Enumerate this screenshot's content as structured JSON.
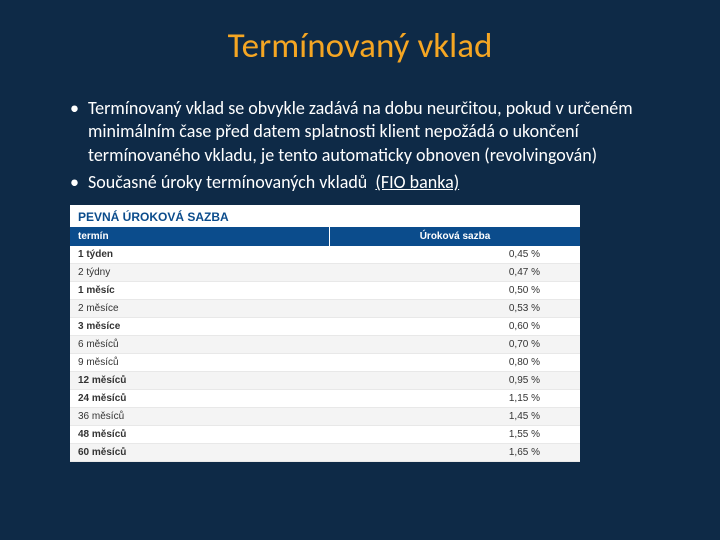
{
  "title": "Termínovaný vklad",
  "bullets": [
    "Termínovaný vklad se obvykle zadává na dobu neurčitou, pokud v určeném minimálním čase před datem splatnosti klient nepožádá o ukončení termínovaného vkladu, je tento automaticky obnoven (revolvingován)",
    "Současné úroky termínovaných vkladů"
  ],
  "link_text": "(FIO banka)",
  "table": {
    "title": "PEVNÁ ÚROKOVÁ SAZBA",
    "header_col1": "termín",
    "header_col2": "Úroková sazba",
    "rows": [
      {
        "term": "1 týden",
        "rate": "0,45 %",
        "zebra": false,
        "bold": true
      },
      {
        "term": "2 týdny",
        "rate": "0,47 %",
        "zebra": true,
        "bold": false
      },
      {
        "term": "1 měsíc",
        "rate": "0,50 %",
        "zebra": false,
        "bold": true
      },
      {
        "term": "2 měsíce",
        "rate": "0,53 %",
        "zebra": true,
        "bold": false
      },
      {
        "term": "3 měsíce",
        "rate": "0,60 %",
        "zebra": false,
        "bold": true
      },
      {
        "term": "6 měsíců",
        "rate": "0,70 %",
        "zebra": true,
        "bold": false
      },
      {
        "term": "9 měsíců",
        "rate": "0,80 %",
        "zebra": false,
        "bold": false
      },
      {
        "term": "12 měsíců",
        "rate": "0,95 %",
        "zebra": true,
        "bold": true
      },
      {
        "term": "24 měsíců",
        "rate": "1,15 %",
        "zebra": false,
        "bold": true
      },
      {
        "term": "36 měsíců",
        "rate": "1,45 %",
        "zebra": true,
        "bold": false
      },
      {
        "term": "48 měsíců",
        "rate": "1,55 %",
        "zebra": false,
        "bold": true
      },
      {
        "term": "60 měsíců",
        "rate": "1,65 %",
        "zebra": true,
        "bold": true
      }
    ]
  }
}
